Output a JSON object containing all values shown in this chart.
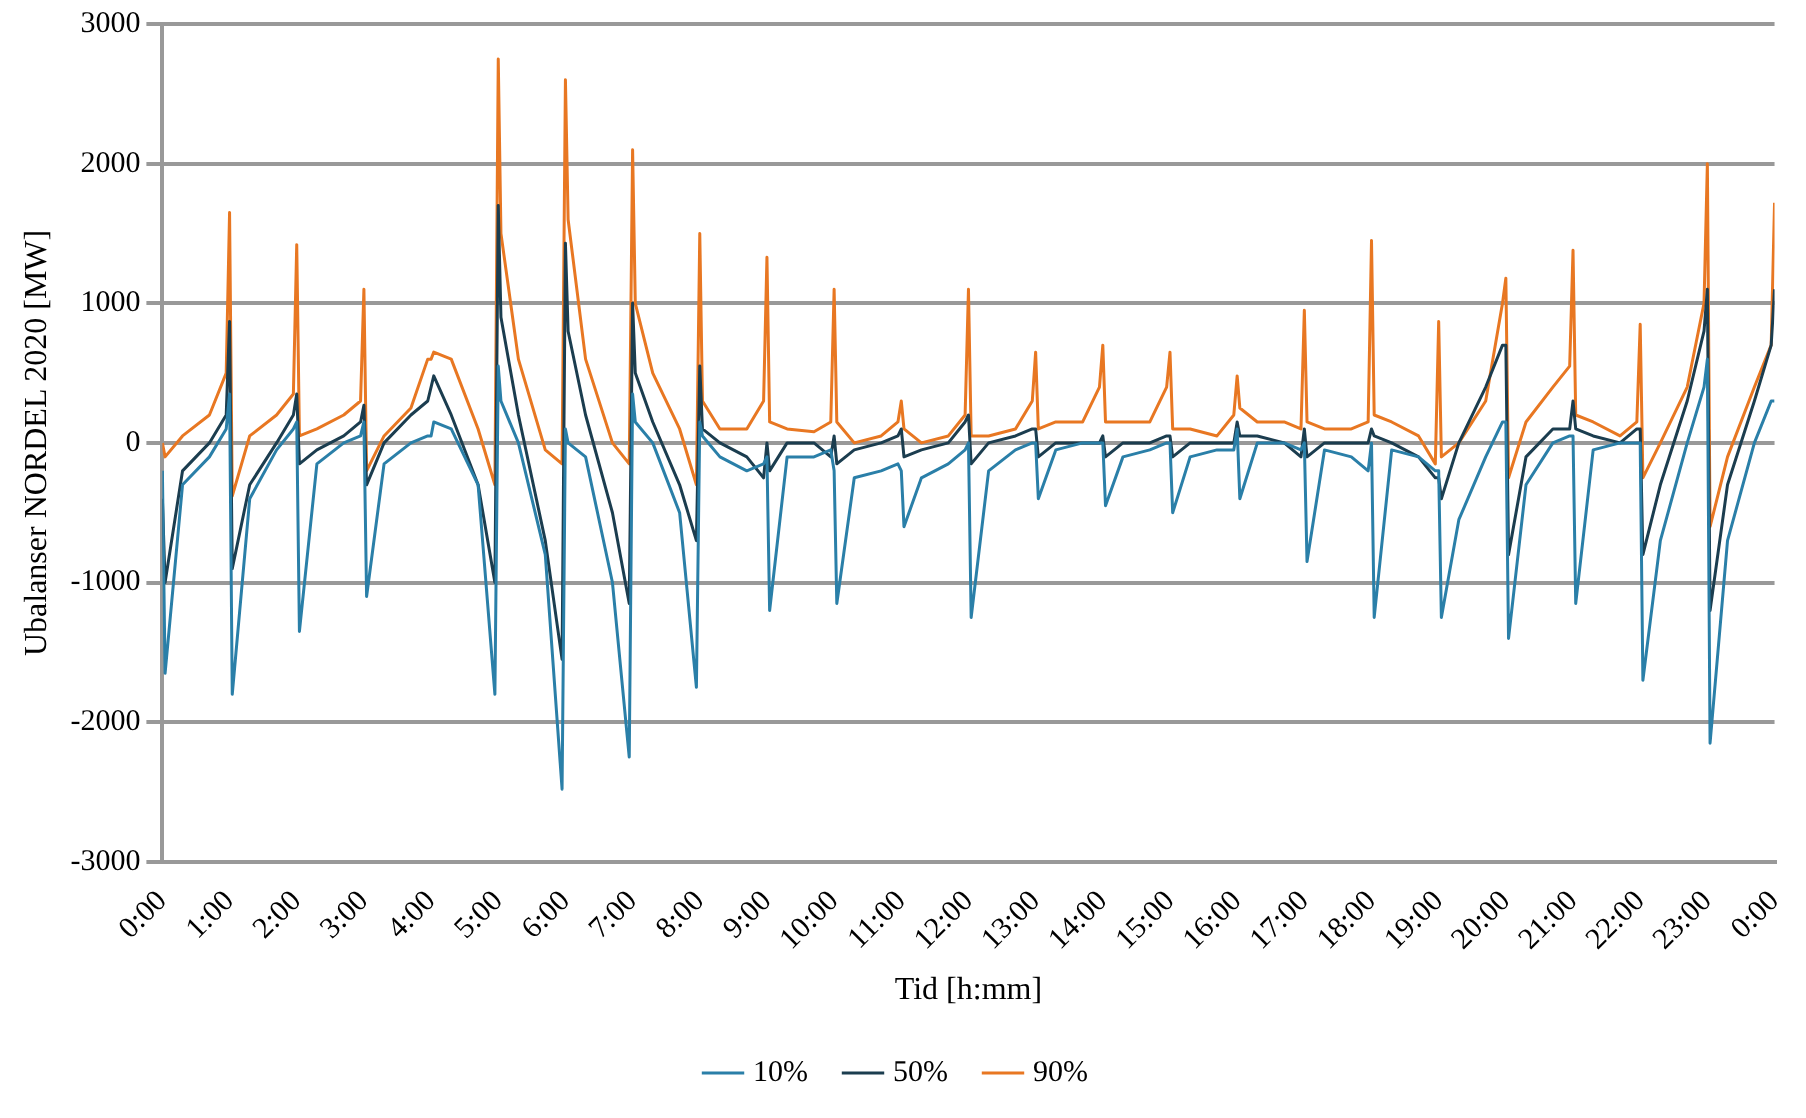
{
  "chart_data": {
    "type": "line",
    "xlabel": "Tid [h:mm]",
    "ylabel": "Ubalanser NORDEL 2020 [MW]",
    "x": [
      0,
      0.04,
      0.3,
      0.7,
      0.95,
      1,
      1.04,
      1.3,
      1.7,
      1.95,
      2,
      2.04,
      2.3,
      2.7,
      2.95,
      3,
      3.04,
      3.3,
      3.7,
      3.95,
      4,
      4.04,
      4.3,
      4.7,
      4.95,
      5,
      5.04,
      5.3,
      5.7,
      5.95,
      6,
      6.04,
      6.3,
      6.7,
      6.95,
      7,
      7.04,
      7.3,
      7.7,
      7.95,
      8,
      8.04,
      8.3,
      8.7,
      8.95,
      9,
      9.04,
      9.3,
      9.7,
      9.95,
      10,
      10.04,
      10.3,
      10.7,
      10.95,
      11,
      11.04,
      11.3,
      11.7,
      11.95,
      12,
      12.04,
      12.3,
      12.7,
      12.95,
      13,
      13.04,
      13.3,
      13.7,
      13.95,
      14,
      14.04,
      14.3,
      14.7,
      14.95,
      15,
      15.04,
      15.3,
      15.7,
      15.95,
      16,
      16.04,
      16.3,
      16.7,
      16.95,
      17,
      17.04,
      17.3,
      17.7,
      17.95,
      18,
      18.04,
      18.3,
      18.7,
      18.95,
      19,
      19.04,
      19.3,
      19.7,
      19.95,
      20,
      20.04,
      20.3,
      20.7,
      20.95,
      21,
      21.04,
      21.3,
      21.7,
      21.95,
      22,
      22.04,
      22.3,
      22.7,
      22.95,
      23,
      23.04,
      23.3,
      23.7,
      23.95,
      24
    ],
    "series": [
      {
        "name": "10%",
        "color": "#2a7fa8",
        "values": [
          -200,
          -1650,
          -300,
          -100,
          100,
          350,
          -1800,
          -400,
          -50,
          100,
          150,
          -1350,
          -150,
          0,
          50,
          150,
          -1100,
          -150,
          0,
          50,
          50,
          150,
          100,
          -300,
          -1800,
          550,
          300,
          0,
          -800,
          -2480,
          100,
          0,
          -100,
          -1000,
          -2250,
          350,
          150,
          0,
          -500,
          -1750,
          150,
          50,
          -100,
          -200,
          -150,
          -100,
          -1200,
          -100,
          -100,
          -50,
          -200,
          -1150,
          -250,
          -200,
          -150,
          -200,
          -600,
          -250,
          -150,
          -50,
          0,
          -1250,
          -200,
          -50,
          0,
          0,
          -400,
          -50,
          0,
          0,
          0,
          -450,
          -100,
          -50,
          0,
          0,
          -500,
          -100,
          -50,
          -50,
          100,
          -400,
          0,
          0,
          -50,
          0,
          -850,
          -50,
          -100,
          -200,
          0,
          -1250,
          -50,
          -100,
          -200,
          -200,
          -1250,
          -550,
          -100,
          150,
          150,
          -1400,
          -300,
          0,
          50,
          50,
          -1150,
          -50,
          0,
          0,
          0,
          -1700,
          -700,
          0,
          400,
          600,
          -2150,
          -700,
          0,
          300,
          300
        ]
      },
      {
        "name": "50%",
        "color": "#1b3d4f",
        "values": [
          -400,
          -1000,
          -200,
          0,
          200,
          870,
          -900,
          -300,
          0,
          200,
          350,
          -150,
          -50,
          50,
          150,
          270,
          -300,
          0,
          200,
          300,
          400,
          480,
          200,
          -300,
          -1000,
          1700,
          900,
          200,
          -700,
          -1550,
          1430,
          800,
          200,
          -500,
          -1150,
          1000,
          500,
          150,
          -300,
          -700,
          550,
          100,
          0,
          -100,
          -250,
          0,
          -200,
          0,
          0,
          -100,
          50,
          -150,
          -50,
          0,
          50,
          100,
          -100,
          -50,
          0,
          150,
          200,
          -150,
          0,
          50,
          100,
          100,
          -100,
          0,
          0,
          0,
          50,
          -100,
          0,
          0,
          50,
          50,
          -100,
          0,
          0,
          0,
          150,
          50,
          50,
          0,
          -100,
          100,
          -100,
          0,
          0,
          0,
          100,
          50,
          0,
          -100,
          -250,
          -250,
          -400,
          0,
          400,
          700,
          700,
          -800,
          -100,
          100,
          100,
          300,
          100,
          50,
          0,
          100,
          100,
          -800,
          -300,
          300,
          800,
          1100,
          -1200,
          -300,
          300,
          700,
          1100
        ]
      },
      {
        "name": "90%",
        "color": "#e87722",
        "values": [
          0,
          -100,
          50,
          200,
          500,
          1650,
          -380,
          50,
          200,
          350,
          1420,
          50,
          100,
          200,
          300,
          1100,
          -200,
          50,
          250,
          600,
          600,
          650,
          600,
          100,
          -300,
          2750,
          1500,
          600,
          -50,
          -150,
          2600,
          1600,
          600,
          0,
          -150,
          2100,
          1000,
          500,
          100,
          -300,
          1500,
          300,
          100,
          100,
          300,
          1330,
          150,
          100,
          80,
          150,
          1100,
          150,
          0,
          50,
          150,
          300,
          100,
          0,
          50,
          200,
          1100,
          50,
          50,
          100,
          300,
          650,
          100,
          150,
          150,
          400,
          700,
          150,
          150,
          150,
          400,
          650,
          100,
          100,
          50,
          200,
          480,
          250,
          150,
          150,
          100,
          950,
          150,
          100,
          100,
          150,
          1450,
          200,
          150,
          50,
          -150,
          870,
          -100,
          0,
          300,
          1000,
          1180,
          -250,
          150,
          400,
          550,
          1380,
          200,
          150,
          50,
          150,
          850,
          -250,
          0,
          400,
          1000,
          2000,
          -600,
          -100,
          400,
          700,
          1720
        ]
      }
    ],
    "xlim": [
      0,
      24
    ],
    "xticks": [
      {
        "value": 0,
        "label": "0:00"
      },
      {
        "value": 1,
        "label": "1:00"
      },
      {
        "value": 2,
        "label": "2:00"
      },
      {
        "value": 3,
        "label": "3:00"
      },
      {
        "value": 4,
        "label": "4:00"
      },
      {
        "value": 5,
        "label": "5:00"
      },
      {
        "value": 6,
        "label": "6:00"
      },
      {
        "value": 7,
        "label": "7:00"
      },
      {
        "value": 8,
        "label": "8:00"
      },
      {
        "value": 9,
        "label": "9:00"
      },
      {
        "value": 10,
        "label": "10:00"
      },
      {
        "value": 11,
        "label": "11:00"
      },
      {
        "value": 12,
        "label": "12:00"
      },
      {
        "value": 13,
        "label": "13:00"
      },
      {
        "value": 14,
        "label": "14:00"
      },
      {
        "value": 15,
        "label": "15:00"
      },
      {
        "value": 16,
        "label": "16:00"
      },
      {
        "value": 17,
        "label": "17:00"
      },
      {
        "value": 18,
        "label": "18:00"
      },
      {
        "value": 19,
        "label": "19:00"
      },
      {
        "value": 20,
        "label": "20:00"
      },
      {
        "value": 21,
        "label": "21:00"
      },
      {
        "value": 22,
        "label": "22:00"
      },
      {
        "value": 23,
        "label": "23:00"
      },
      {
        "value": 24,
        "label": "0:00"
      }
    ],
    "ylim": [
      -3000,
      3000
    ],
    "yticks": [
      -3000,
      -2000,
      -1000,
      0,
      1000,
      2000,
      3000
    ],
    "grid": "y",
    "legend": "bottom",
    "marker": "none",
    "line_style": "solid"
  }
}
